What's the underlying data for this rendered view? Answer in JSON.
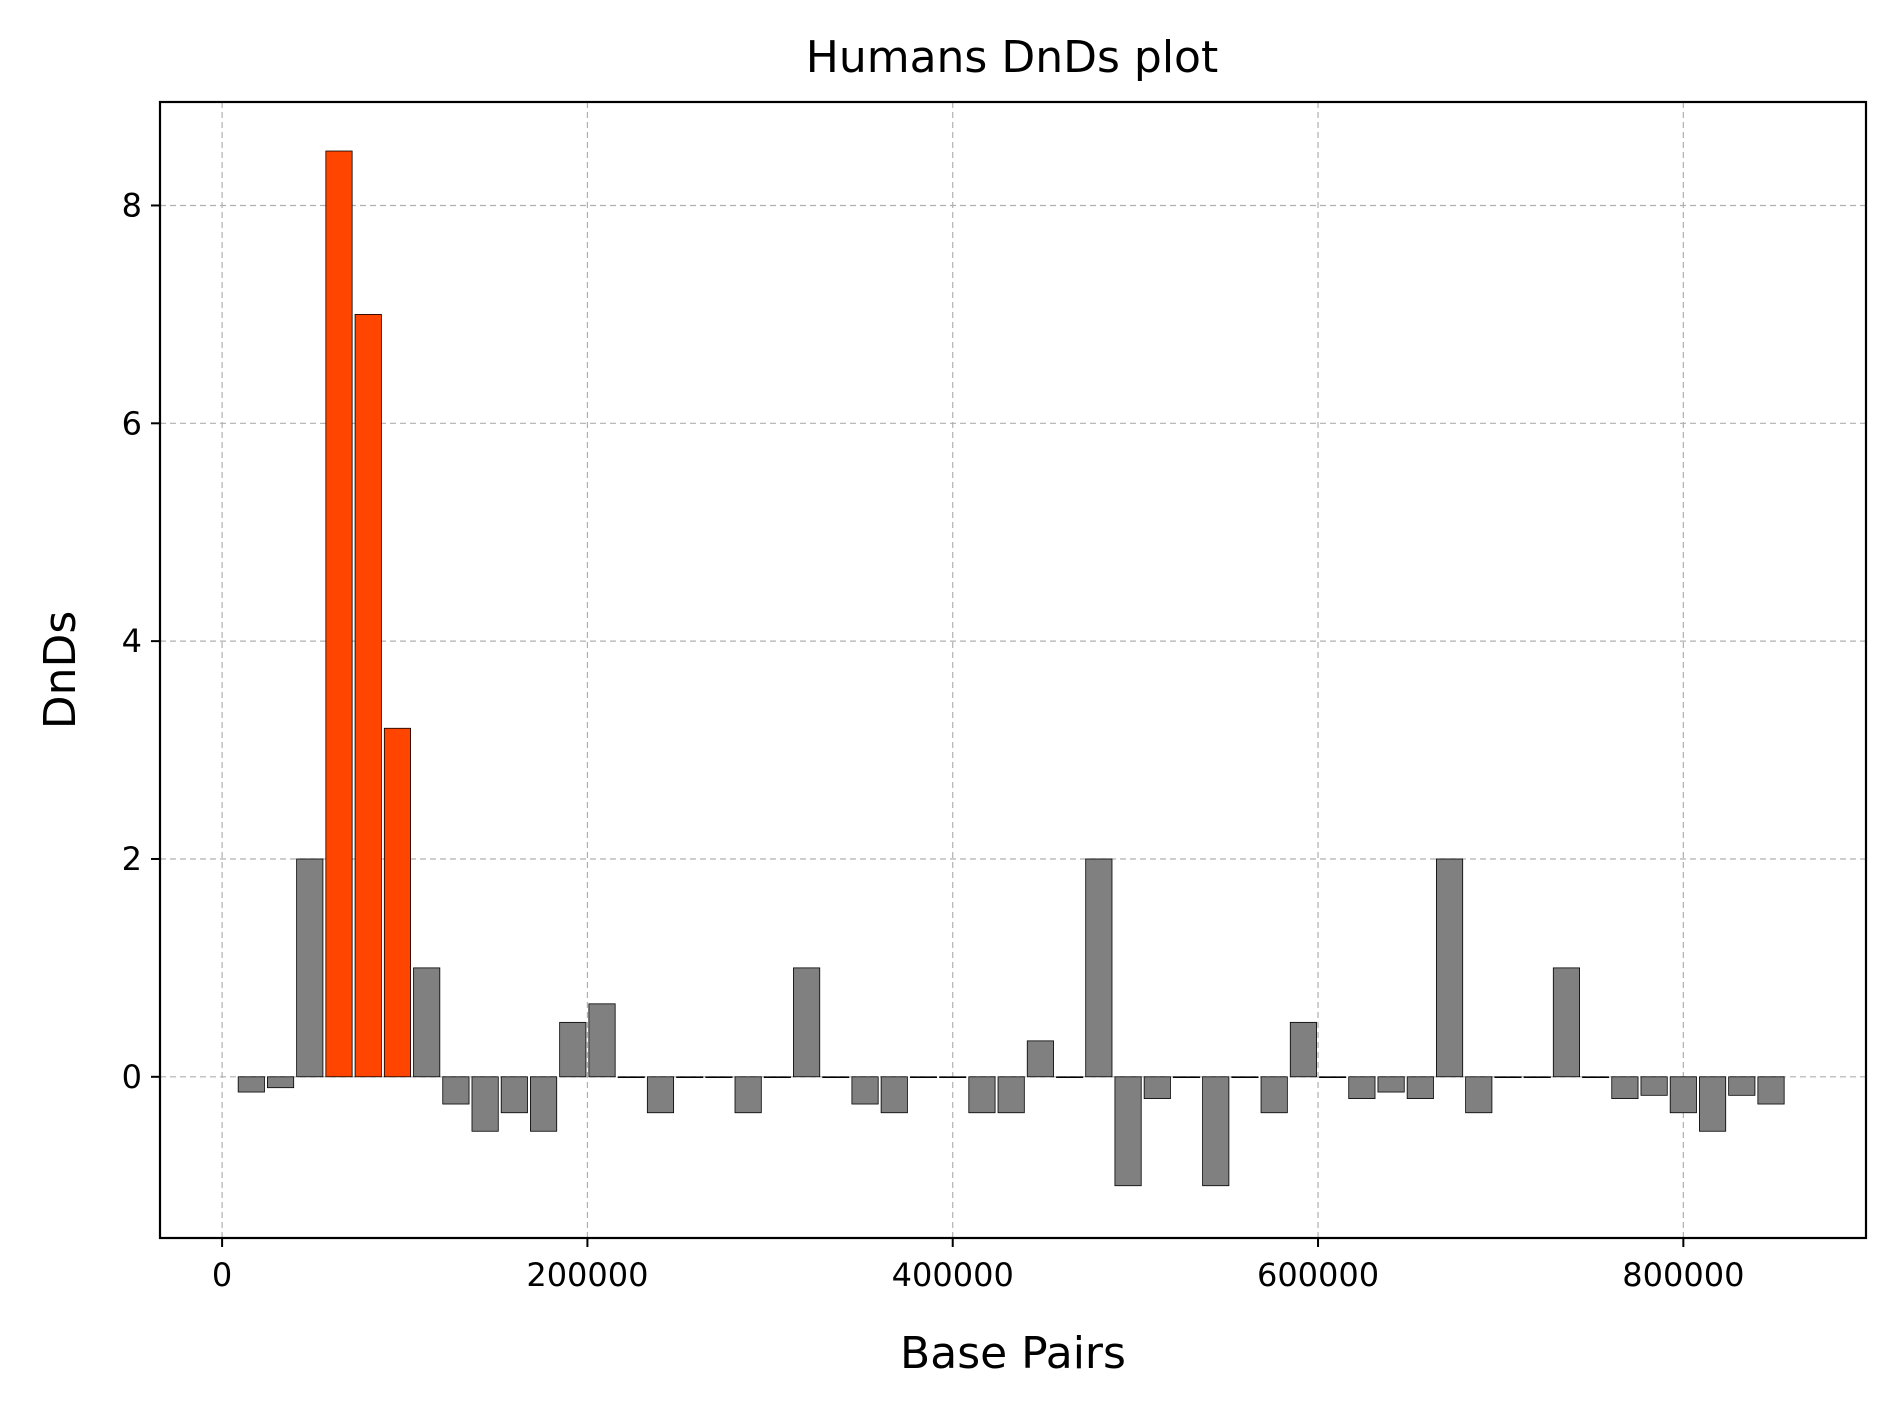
{
  "chart_data": {
    "type": "bar",
    "title": "Humans DnDs plot",
    "xlabel": "Base Pairs",
    "ylabel": "DnDs",
    "xlim": [
      -34000,
      900000
    ],
    "ylim": [
      -1.48,
      8.95
    ],
    "xticks": [
      0,
      200000,
      400000,
      600000,
      800000
    ],
    "xtick_labels": [
      "0",
      "200000",
      "400000",
      "600000",
      "800000"
    ],
    "yticks": [
      0,
      2,
      4,
      6,
      8
    ],
    "ytick_labels": [
      "0",
      "2",
      "4",
      "6",
      "8"
    ],
    "grid": true,
    "bin_width": 16000,
    "colors": {
      "default": "#808080",
      "highlight": "#ff4500"
    },
    "x": [
      16000,
      32000,
      48000,
      64000,
      80000,
      96000,
      112000,
      128000,
      144000,
      160000,
      176000,
      192000,
      208000,
      224000,
      240000,
      256000,
      272000,
      288000,
      304000,
      320000,
      336000,
      352000,
      368000,
      384000,
      400000,
      416000,
      432000,
      448000,
      464000,
      480000,
      496000,
      512000,
      528000,
      544000,
      560000,
      576000,
      592000,
      608000,
      624000,
      640000,
      656000,
      672000,
      688000,
      704000,
      720000,
      736000,
      752000,
      768000,
      784000,
      800000,
      816000,
      832000,
      848000
    ],
    "values": [
      -0.14,
      -0.1,
      2.0,
      8.5,
      7.0,
      3.2,
      1.0,
      -0.25,
      -0.5,
      -0.33,
      -0.5,
      0.5,
      0.67,
      0,
      -0.33,
      0,
      0,
      -0.33,
      0,
      1.0,
      0,
      -0.25,
      -0.33,
      0,
      0,
      -0.33,
      -0.33,
      0.33,
      0,
      2.0,
      -1.0,
      -0.2,
      0,
      -1.0,
      0,
      -0.33,
      0.5,
      0,
      -0.2,
      -0.14,
      -0.2,
      2.0,
      -0.33,
      0,
      0,
      1.0,
      0,
      -0.2,
      -0.17,
      -0.33,
      -0.5,
      -0.17,
      -0.25
    ],
    "highlight": [
      false,
      false,
      false,
      true,
      true,
      true,
      false,
      false,
      false,
      false,
      false,
      false,
      false,
      false,
      false,
      false,
      false,
      false,
      false,
      false,
      false,
      false,
      false,
      false,
      false,
      false,
      false,
      false,
      false,
      false,
      false,
      false,
      false,
      false,
      false,
      false,
      false,
      false,
      false,
      false,
      false,
      false,
      false,
      false,
      false,
      false,
      false,
      false,
      false,
      false,
      false,
      false,
      false
    ]
  }
}
